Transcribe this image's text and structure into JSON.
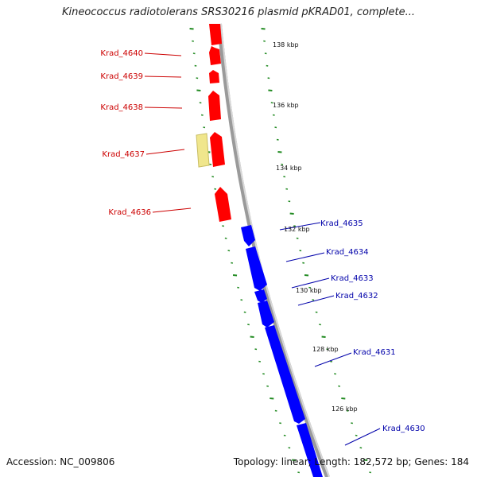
{
  "title": "Kineococcus radiotolerans SRS30216 plasmid pKRAD01, complete...",
  "footer": {
    "accession": "Accession: NC_009806",
    "summary": "Topology: linear; Length: 182,572 bp; Genes: 184"
  },
  "colors": {
    "forward_gene": "#ff0000",
    "reverse_gene": "#0000ff",
    "pseudo_gene": "#f0e68c",
    "backbone": "#808080",
    "tick": "#228b22",
    "forward_label": "#cc0000",
    "reverse_label": "#0000aa"
  },
  "ruler_labels": [
    "138 kbp",
    "136 kbp",
    "134 kbp",
    "132 kbp",
    "130 kbp",
    "128 kbp",
    "126 kbp"
  ],
  "forward_genes": [
    "Krad_4640",
    "Krad_4639",
    "Krad_4638",
    "Krad_4637",
    "Krad_4636"
  ],
  "reverse_genes": [
    "Krad_4635",
    "Krad_4634",
    "Krad_4633",
    "Krad_4632",
    "Krad_4631",
    "Krad_4630"
  ]
}
